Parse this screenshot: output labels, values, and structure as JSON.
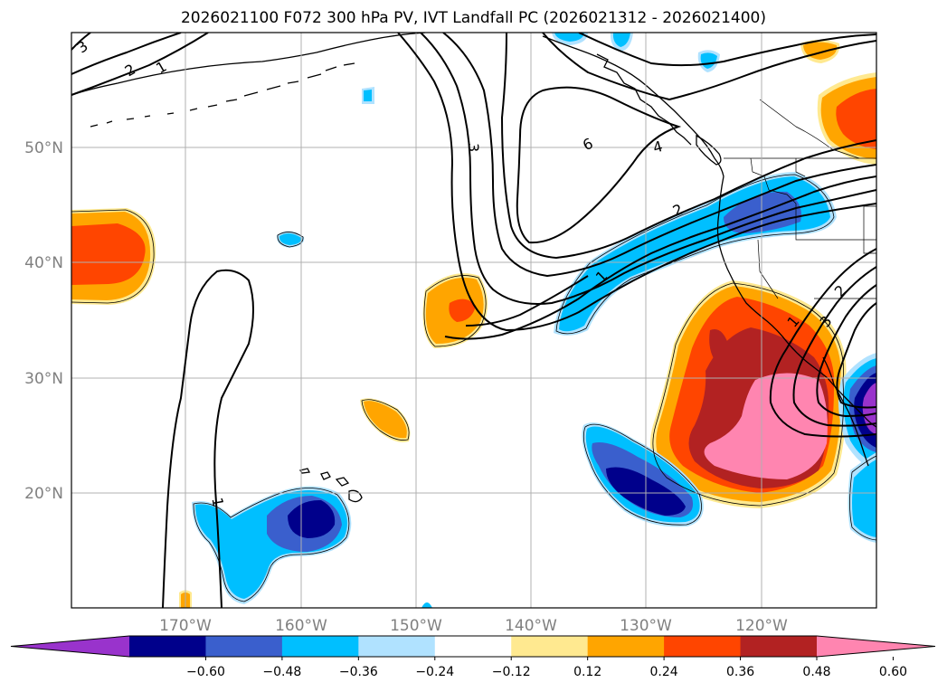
{
  "title": "2026021100 F072 300 hPa PV, IVT Landfall PC (2026021312 - 2026021400)",
  "lat_labels": [
    "50°N",
    "40°N",
    "30°N",
    "20°N"
  ],
  "lon_labels": [
    "170°W",
    "160°W",
    "150°W",
    "140°W",
    "130°W",
    "120°W"
  ],
  "colorbar": {
    "ticks": [
      "−0.60",
      "−0.48",
      "−0.36",
      "−0.24",
      "−0.12",
      "0.12",
      "0.24",
      "0.36",
      "0.48",
      "0.60"
    ],
    "colors": [
      "#9933cc",
      "#00008b",
      "#3a5fcd",
      "#00bfff",
      "#b0e2ff",
      "#ffffff",
      "#ffe990",
      "#ffa500",
      "#ff4500",
      "#b22222",
      "#ff85b0"
    ]
  },
  "contour_labels": [
    "3",
    "2",
    "1",
    "3",
    "6",
    "4",
    "2",
    "1",
    "1",
    "1",
    "2",
    "3"
  ]
}
